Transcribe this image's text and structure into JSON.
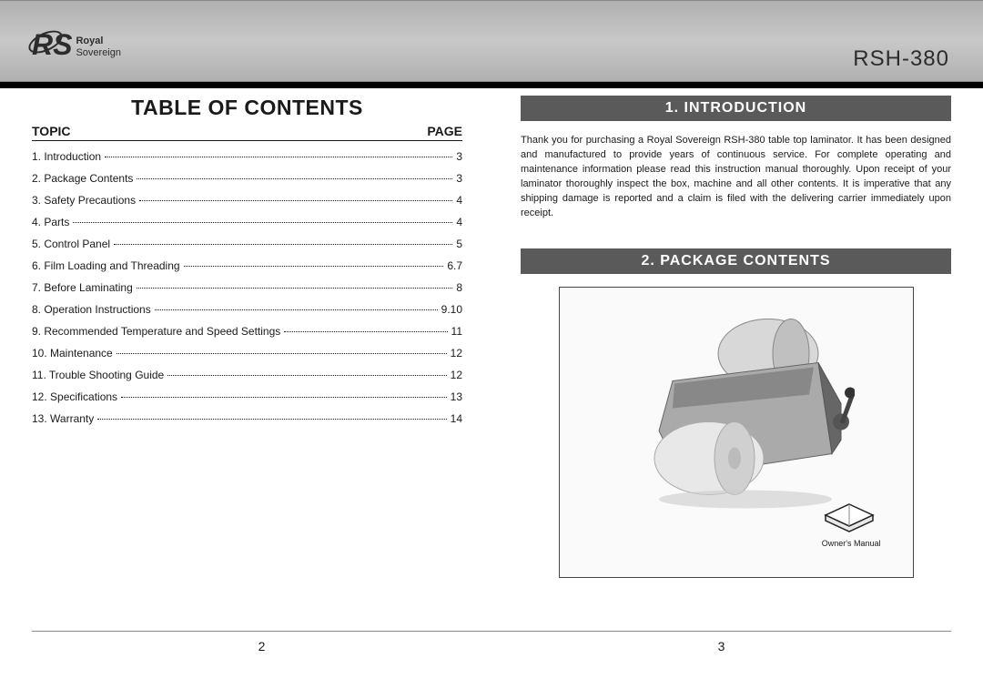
{
  "header": {
    "logo_mark": "RS",
    "logo_line1": "Royal",
    "logo_line2": "Sovereign",
    "model": "RSH-380"
  },
  "colors": {
    "header_gradient_top": "#b0b0b0",
    "header_gradient_mid": "#c8c8c8",
    "black_bar": "#000000",
    "section_header_bg": "#5a5a5a",
    "section_header_text": "#ffffff",
    "body_text": "#1a1a1a",
    "box_border": "#444444",
    "footer_line": "#888888"
  },
  "toc": {
    "title": "TABLE OF CONTENTS",
    "topic_header": "TOPIC",
    "page_header": "PAGE",
    "items": [
      {
        "label": "1. Introduction",
        "page": "3"
      },
      {
        "label": "2. Package Contents",
        "page": "3"
      },
      {
        "label": "3. Safety Precautions",
        "page": "4"
      },
      {
        "label": "4. Parts",
        "page": "4"
      },
      {
        "label": "5. Control Panel",
        "page": "5"
      },
      {
        "label": "6. Film Loading and Threading",
        "page": "6.7"
      },
      {
        "label": "7. Before Laminating",
        "page": "8"
      },
      {
        "label": "8. Operation Instructions",
        "page": "9.10"
      },
      {
        "label": "9. Recommended Temperature and Speed Settings",
        "page": "11"
      },
      {
        "label": "10. Maintenance",
        "page": "12"
      },
      {
        "label": "11. Trouble Shooting Guide",
        "page": "12"
      },
      {
        "label": "12. Specifications",
        "page": "13"
      },
      {
        "label": "13. Warranty",
        "page": "14"
      }
    ]
  },
  "sections": {
    "introduction": {
      "title": "1.  INTRODUCTION",
      "body": "Thank you for purchasing a Royal Sovereign RSH-380 table top laminator. It has been designed and manufactured to provide years of continuous service. For complete operating and maintenance information please read this instruction manual thoroughly. Upon receipt of your laminator thoroughly inspect the box, machine and all other contents. It is imperative that any shipping damage is reported and a claim is filed with the delivering carrier immediately upon receipt."
    },
    "package_contents": {
      "title": "2.  PACKAGE CONTENTS",
      "manual_label": "Owner's Manual"
    }
  },
  "footer": {
    "page_left": "2",
    "page_right": "3"
  }
}
